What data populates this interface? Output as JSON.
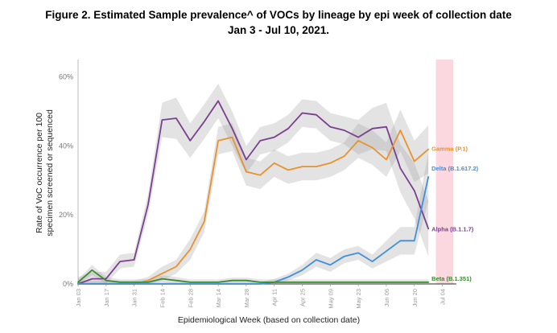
{
  "chart_data": {
    "type": "line",
    "title_lines": [
      "Figure 2. Estimated Sample prevalence^ of VOCs by lineage by epi week of collection date",
      "Jan 3 - Jul 10, 2021."
    ],
    "xlabel": "Epidemiological Week (based on collection date)",
    "ylabel_lines": [
      "Rate of VoC occurrence per 100",
      "specimen screened or sequenced"
    ],
    "y_ticks": [
      "0%",
      "20%",
      "40%",
      "60%"
    ],
    "y_tick_values": [
      0,
      20,
      40,
      60
    ],
    "ylim": [
      0,
      65
    ],
    "x_ticks": [
      "Jan 03",
      "Jan 17",
      "Jan 31",
      "Feb 14",
      "Feb 28",
      "Mar 14",
      "Mar 28",
      "Apr 11",
      "Apr 25",
      "May 09",
      "May 23",
      "Jun 06",
      "Jun 20",
      "Jul 04"
    ],
    "x_tick_week_index": [
      0,
      2,
      4,
      6,
      8,
      10,
      12,
      14,
      16,
      18,
      20,
      22,
      24,
      26
    ],
    "n_weeks": 28,
    "highlight_weeks": [
      26,
      27
    ],
    "series": [
      {
        "name": "Alpha (B.1.1.7)",
        "color": "#7b3f8f",
        "values": [
          0,
          1.5,
          1.5,
          6.5,
          7,
          23,
          47.5,
          48,
          41.5,
          47,
          53,
          45,
          36,
          41.5,
          42.5,
          45,
          49.5,
          49,
          45.5,
          44.5,
          42.5,
          45,
          45.5,
          33.5,
          27,
          16
        ],
        "band": [
          2,
          2,
          2,
          2,
          2,
          3,
          5,
          6,
          5,
          5,
          5,
          5,
          4,
          4,
          4,
          4,
          4,
          4,
          4,
          4,
          5,
          6,
          7,
          7,
          8,
          8
        ]
      },
      {
        "name": "Gamma (P.1)",
        "color": "#e8922e",
        "values": [
          0,
          0,
          0,
          0,
          0,
          1,
          3,
          5,
          10,
          18,
          41.5,
          42.5,
          32.5,
          31.5,
          35,
          33,
          34,
          34,
          35,
          37,
          41.5,
          39.5,
          36,
          44.5,
          35.5,
          39
        ],
        "band": [
          1,
          1,
          1,
          1,
          1,
          1,
          2,
          2,
          3,
          3,
          4,
          4,
          4,
          4,
          4,
          4,
          4,
          4,
          4,
          4,
          5,
          5,
          5,
          6,
          6,
          7
        ]
      },
      {
        "name": "Delta (B.1.617.2)",
        "color": "#3f8fdb",
        "values": [
          0,
          0,
          0,
          0,
          0,
          0,
          0,
          0,
          0,
          0,
          0,
          0,
          0,
          0,
          0.5,
          2,
          4,
          7,
          5.5,
          8,
          9,
          6.5,
          9.5,
          12.5,
          12.5,
          31
        ],
        "band": [
          0.5,
          0.5,
          0.5,
          0.5,
          0.5,
          0.5,
          0.5,
          0.5,
          0.5,
          0.5,
          0.5,
          0.5,
          0.5,
          0.5,
          1,
          1,
          1.5,
          2,
          2,
          2,
          2,
          2,
          3,
          4,
          4,
          7
        ]
      },
      {
        "name": "Beta (B.1.351)",
        "color": "#3a8a2e",
        "values": [
          0.5,
          4,
          1,
          0.5,
          0.5,
          0.5,
          1.5,
          1,
          0.5,
          0.5,
          0.5,
          1,
          1,
          0.5,
          0.5,
          0.5,
          0.5,
          0.5,
          0.5,
          0.5,
          0.5,
          0.5,
          0.5,
          0.5,
          0.5,
          0.5
        ],
        "band": [
          0.8,
          1.5,
          1,
          0.8,
          0.8,
          0.8,
          1,
          1,
          0.8,
          0.8,
          0.8,
          0.8,
          0.8,
          0.8,
          0.8,
          0.8,
          0.8,
          0.8,
          0.8,
          0.8,
          0.8,
          0.8,
          0.8,
          0.8,
          0.8,
          0.8
        ]
      }
    ]
  }
}
